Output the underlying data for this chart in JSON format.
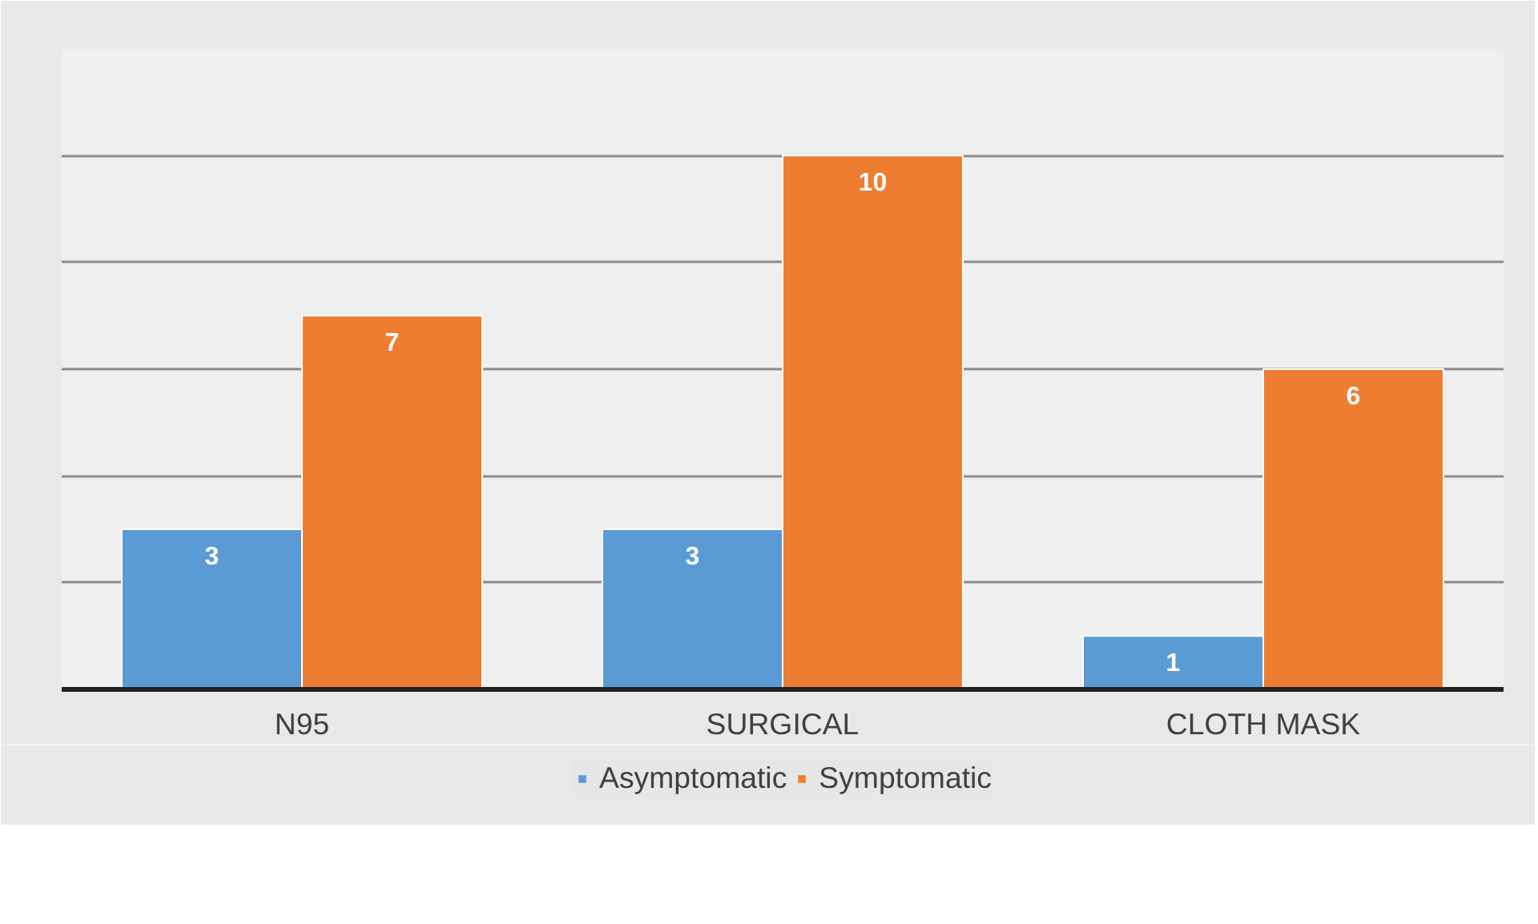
{
  "chart_data": {
    "type": "bar",
    "categories": [
      "N95",
      "SURGICAL",
      "CLOTH MASK"
    ],
    "series": [
      {
        "name": "Asymptomatic",
        "color": "#5b9bd5",
        "values": [
          3,
          3,
          1
        ]
      },
      {
        "name": "Symptomatic",
        "color": "#ed7d31",
        "values": [
          7,
          10,
          6
        ]
      }
    ],
    "yticks": [
      {
        "value": 0,
        "label": null
      },
      {
        "value": 2,
        "label": null
      },
      {
        "value": 4,
        "label": null
      },
      {
        "value": 6,
        "label": null
      },
      {
        "value": 8,
        "label": null
      },
      {
        "value": 10,
        "label": null
      },
      {
        "value": 12,
        "label": null
      }
    ],
    "tick_labels": "x",
    "grid": "y",
    "legend": "bottom",
    "data_labels": true
  }
}
